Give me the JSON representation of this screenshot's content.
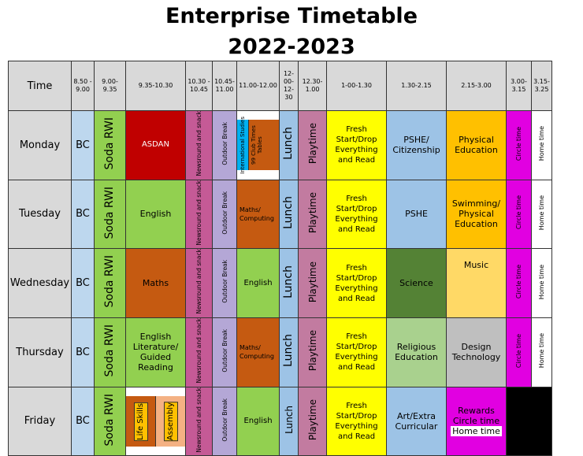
{
  "title": {
    "line1": "Enterprise Timetable",
    "line2": "2022-2023"
  },
  "headers": {
    "time": "Time",
    "t1": "8.50 - 9.00",
    "t2": "9.00- 9.35",
    "t3": "9.35-10.30",
    "t4": "10.30 - 10.45",
    "t5": "10.45- 11.00",
    "t6": "11.00-12.00",
    "t7": "12- 00- 12- 30",
    "t8": "12.30- 1.00",
    "t9": "1-00-1.30",
    "t10": "1.30-2.15",
    "t11": "2.15-3.00",
    "t12": "3.00- 3.15",
    "t13": "3.15- 3.25"
  },
  "common": {
    "bc": "BC",
    "soda": "Soda RWI",
    "newsround": "Newsround and snack",
    "outdoor": "Outdoor Break",
    "lunch": "Lunch",
    "playtime": "Playtime",
    "fresh": "Fresh Start/Drop Everything and Read",
    "circle": "Circle time",
    "home": "Home time"
  },
  "days": {
    "monday": {
      "name": "Monday",
      "p1": "ASDAN",
      "intl": "International Studies",
      "club": "99 Club Times Tables",
      "after1": "PSHE/ Citizenship",
      "after2": "Physical Education"
    },
    "tuesday": {
      "name": "Tuesday",
      "p1": "English",
      "p2": "Maths/ Computing",
      "after1": "PSHE",
      "after2": "Swimming/ Physical Education"
    },
    "wednesday": {
      "name": "Wednesday",
      "p1": "Maths",
      "p2": "English",
      "after1": "Science",
      "after2": "Music"
    },
    "thursday": {
      "name": "Thursday",
      "p1": "English Literature/ Guided Reading",
      "p2": "Maths/ Computing",
      "after1": "Religious Education",
      "after2": "Design Technology"
    },
    "friday": {
      "name": "Friday",
      "life": "Life Skills",
      "assembly": "Assembly",
      "p2": "English",
      "after1": "Art/Extra Curricular",
      "rewards": "Rewards Circle time",
      "home": "Home time"
    }
  },
  "colors": {
    "header_gray": "#d9d9d9",
    "bc_blue": "#bdd7ee",
    "soda_green": "#92d050",
    "asdan_red": "#c00000",
    "orange_brown": "#c55a11",
    "fresh_yellow": "#ffff00",
    "circle_magenta": "#e100e1",
    "science_green": "#548235",
    "music_peach": "#ffd966"
  }
}
